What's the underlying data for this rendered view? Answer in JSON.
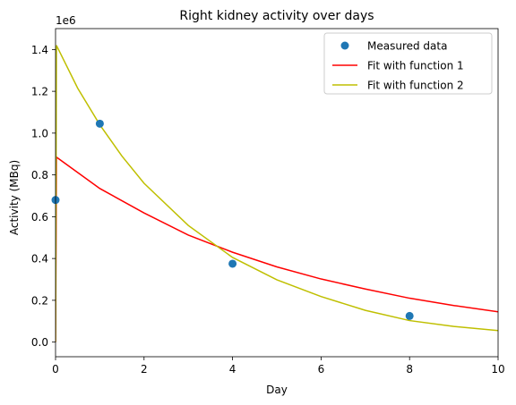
{
  "chart_data": {
    "type": "scatter",
    "title": "Right kidney activity over days",
    "xlabel": "Day",
    "ylabel": "Activity (MBq)",
    "y_offset_text": "1e6",
    "xlim": [
      0,
      10
    ],
    "ylim": [
      -70000,
      1500000
    ],
    "x_ticks": [
      0,
      2,
      4,
      6,
      8,
      10
    ],
    "y_ticks": [
      0,
      200000,
      400000,
      600000,
      800000,
      1000000,
      1200000,
      1400000
    ],
    "x_tick_labels": [
      "0",
      "2",
      "4",
      "6",
      "8",
      "10"
    ],
    "y_tick_labels": [
      "0.0",
      "0.2",
      "0.4",
      "0.6",
      "0.8",
      "1.0",
      "1.2",
      "1.4"
    ],
    "grid": false,
    "legend_position": "top-right",
    "series": [
      {
        "name": "Measured data",
        "kind": "scatter",
        "color": "#1f77b4",
        "points": [
          {
            "x": 0,
            "y": 680000
          },
          {
            "x": 1,
            "y": 1045000
          },
          {
            "x": 4,
            "y": 375000
          },
          {
            "x": 8,
            "y": 125000
          }
        ]
      },
      {
        "name": "Fit with function 1",
        "kind": "line",
        "color": "#ff0000",
        "points": [
          {
            "x": 0,
            "y": 0
          },
          {
            "x": 0.02,
            "y": 885000
          },
          {
            "x": 1,
            "y": 735000
          },
          {
            "x": 2,
            "y": 618000
          },
          {
            "x": 3,
            "y": 512000
          },
          {
            "x": 4,
            "y": 430000
          },
          {
            "x": 5,
            "y": 360000
          },
          {
            "x": 6,
            "y": 302000
          },
          {
            "x": 7,
            "y": 254000
          },
          {
            "x": 8,
            "y": 210000
          },
          {
            "x": 9,
            "y": 175000
          },
          {
            "x": 10,
            "y": 145000
          }
        ]
      },
      {
        "name": "Fit with function 2",
        "kind": "line",
        "color": "#bfbf00",
        "points": [
          {
            "x": 0,
            "y": 0
          },
          {
            "x": 0.02,
            "y": 1420000
          },
          {
            "x": 0.5,
            "y": 1215000
          },
          {
            "x": 1,
            "y": 1040000
          },
          {
            "x": 1.5,
            "y": 890000
          },
          {
            "x": 2,
            "y": 760000
          },
          {
            "x": 3,
            "y": 558000
          },
          {
            "x": 4,
            "y": 405000
          },
          {
            "x": 5,
            "y": 298000
          },
          {
            "x": 6,
            "y": 218000
          },
          {
            "x": 7,
            "y": 152000
          },
          {
            "x": 8,
            "y": 103000
          },
          {
            "x": 9,
            "y": 75000
          },
          {
            "x": 10,
            "y": 55000
          }
        ]
      }
    ]
  }
}
